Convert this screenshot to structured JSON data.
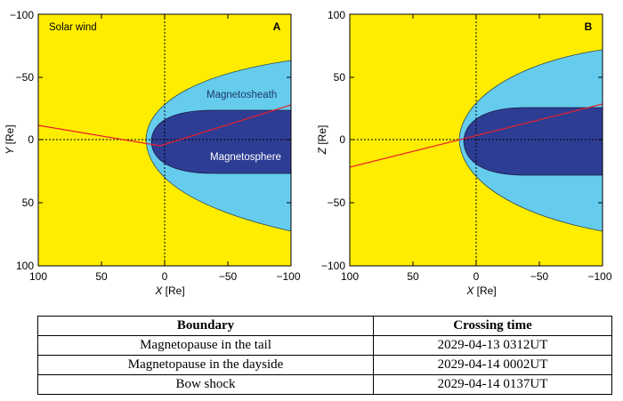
{
  "panels": [
    {
      "id": "A",
      "horizontal_axis": {
        "name": "X",
        "unit": "[Re]",
        "ticks": [
          "100",
          "50",
          "0",
          "−50",
          "−100"
        ]
      },
      "vertical_axis": {
        "name": "Y",
        "unit": "[Re]",
        "ticks": [
          "−100",
          "−50",
          "0",
          "50",
          "100"
        ]
      },
      "region_labels": [
        "Solar wind",
        "Magnetosheath",
        "Magnetosphere"
      ]
    },
    {
      "id": "B",
      "horizontal_axis": {
        "name": "X",
        "unit": "[Re]",
        "ticks": [
          "100",
          "50",
          "0",
          "−50",
          "−100"
        ]
      },
      "vertical_axis": {
        "name": "Z",
        "unit": "[Re]",
        "ticks": [
          "100",
          "50",
          "0",
          "−50",
          "−100"
        ]
      },
      "region_labels": []
    }
  ],
  "colors": {
    "solar_wind": "#FFED00",
    "magnetosheath": "#66CCEE",
    "magnetosphere": "#2E3D94",
    "trajectory": "#E8202A"
  },
  "table": {
    "headers": [
      "Boundary",
      "Crossing time"
    ],
    "rows": [
      [
        "Magnetopause in the tail",
        "2029-04-13 0312UT"
      ],
      [
        "Magnetopause in the dayside",
        "2029-04-14 0002UT"
      ],
      [
        "Bow shock",
        "2029-04-14 0137UT"
      ]
    ]
  }
}
